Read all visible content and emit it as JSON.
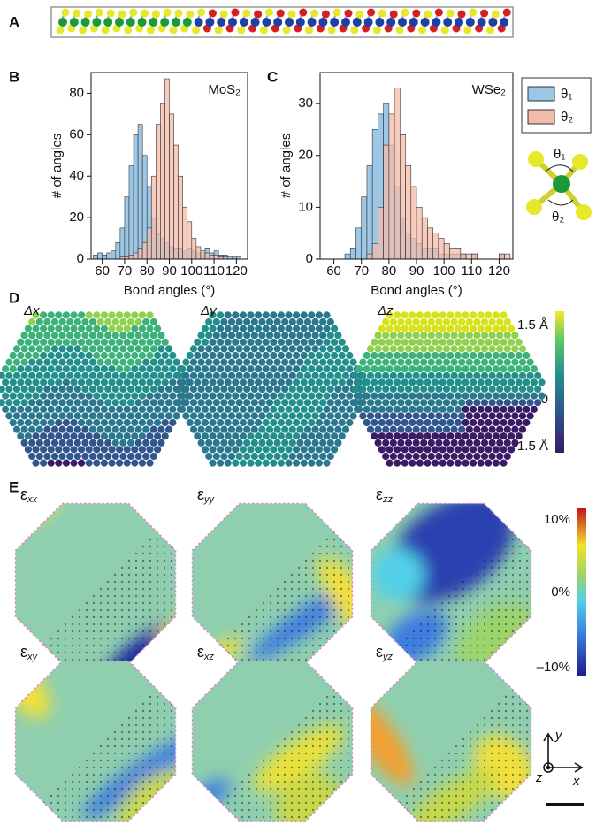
{
  "panels": {
    "a": "A",
    "b": "B",
    "c": "C",
    "d": "D",
    "e": "E"
  },
  "chart_data": [
    {
      "type": "histogram",
      "annotation": "MoS₂",
      "xlabel": "Bond angles (°)",
      "ylabel": "# of angles",
      "bins": [
        56,
        58,
        60,
        62,
        64,
        66,
        68,
        70,
        72,
        74,
        76,
        78,
        80,
        82,
        84,
        86,
        88,
        90,
        92,
        94,
        96,
        98,
        100,
        102,
        104,
        106,
        108,
        110,
        112,
        114,
        116,
        118,
        120,
        122,
        124
      ],
      "series": [
        {
          "name": "θ₁",
          "color": "#9cc7e6",
          "values": [
            2,
            3,
            2,
            3,
            4,
            8,
            15,
            30,
            45,
            60,
            65,
            50,
            35,
            20,
            12,
            10,
            8,
            6,
            5,
            5,
            4,
            5,
            4,
            3,
            3,
            5,
            3,
            4,
            2,
            2,
            1,
            1,
            1,
            0
          ]
        },
        {
          "name": "θ₂",
          "color": "#f4bba8",
          "values": [
            0,
            0,
            0,
            0,
            0,
            0,
            1,
            1,
            2,
            3,
            5,
            8,
            15,
            40,
            65,
            75,
            87,
            70,
            55,
            40,
            25,
            18,
            10,
            6,
            4,
            3,
            2,
            2,
            1,
            1,
            0,
            0,
            0,
            0
          ]
        }
      ],
      "xlim": [
        55,
        125
      ],
      "xticks": [
        60,
        70,
        80,
        90,
        100,
        110,
        120
      ],
      "ylim": [
        0,
        90
      ],
      "yticks": [
        0,
        20,
        40,
        60,
        80
      ]
    },
    {
      "type": "histogram",
      "annotation": "WSe₂",
      "xlabel": "Bond angles (°)",
      "ylabel": "# of angles",
      "bins": [
        56,
        58,
        60,
        62,
        64,
        66,
        68,
        70,
        72,
        74,
        76,
        78,
        80,
        82,
        84,
        86,
        88,
        90,
        92,
        94,
        96,
        98,
        100,
        102,
        104,
        106,
        108,
        110,
        112,
        114,
        116,
        118,
        120,
        122,
        124
      ],
      "series": [
        {
          "name": "θ₁",
          "color": "#9cc7e6",
          "values": [
            0,
            0,
            0,
            0,
            1,
            2,
            6,
            12,
            18,
            25,
            28,
            30,
            22,
            14,
            8,
            5,
            4,
            3,
            2,
            2,
            2,
            1,
            1,
            1,
            1,
            1,
            0,
            1,
            0,
            0,
            0,
            0,
            1,
            0
          ]
        },
        {
          "name": "θ₂",
          "color": "#f4bba8",
          "values": [
            0,
            0,
            0,
            0,
            0,
            0,
            0,
            0,
            1,
            3,
            10,
            22,
            28,
            33,
            24,
            18,
            14,
            10,
            8,
            6,
            5,
            4,
            3,
            2,
            2,
            1,
            1,
            1,
            0,
            0,
            0,
            0,
            1,
            1
          ]
        }
      ],
      "xlim": [
        55,
        125
      ],
      "xticks": [
        60,
        70,
        80,
        90,
        100,
        110,
        120
      ],
      "ylim": [
        0,
        36
      ],
      "yticks": [
        0,
        10,
        20,
        30
      ]
    }
  ],
  "displacement_maps": [
    "Δx",
    "Δy",
    "Δz"
  ],
  "displacement_colorbar": [
    "1.5 Å",
    "0",
    "–1.5 Å"
  ],
  "strain_maps": [
    {
      "symbol": "ε",
      "subscript": "xx"
    },
    {
      "symbol": "ε",
      "subscript": "yy"
    },
    {
      "symbol": "ε",
      "subscript": "zz"
    },
    {
      "symbol": "ε",
      "subscript": "xy"
    },
    {
      "symbol": "ε",
      "subscript": "xz"
    },
    {
      "symbol": "ε",
      "subscript": "yz"
    }
  ],
  "strain_colorbar": [
    "10%",
    "0%",
    "–10%"
  ],
  "axes_labels": {
    "y": "y",
    "z": "z",
    "x": "x"
  }
}
